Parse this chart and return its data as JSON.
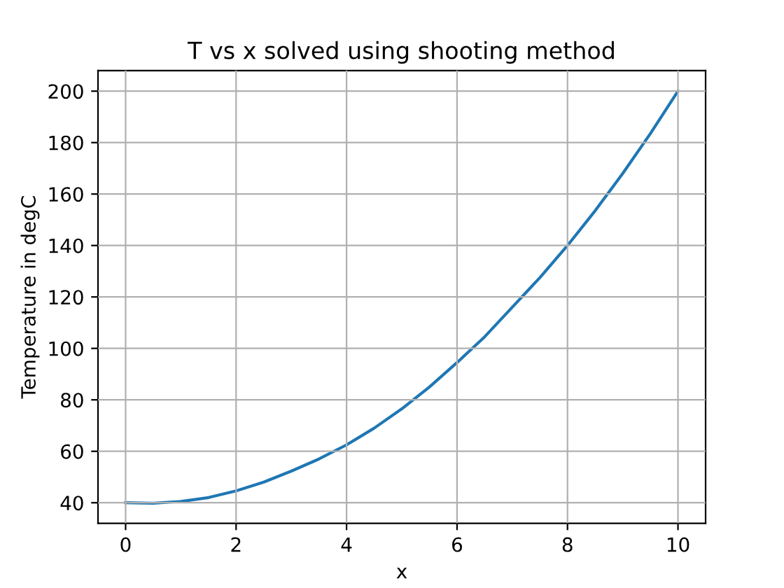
{
  "chart_data": {
    "type": "line",
    "title": "T vs x solved using shooting method",
    "xlabel": "x",
    "ylabel": "Temperature in degC",
    "x": [
      0,
      0.5,
      1,
      1.5,
      2,
      2.5,
      3,
      3.5,
      4,
      4.5,
      5,
      5.5,
      6,
      6.5,
      7,
      7.5,
      8,
      8.5,
      9,
      9.5,
      10
    ],
    "series": [
      {
        "color": "#1f77b4",
        "values": [
          40.0,
          39.8,
          40.5,
          42.0,
          44.6,
          48.0,
          52.3,
          57.0,
          62.5,
          69.0,
          76.5,
          85.0,
          94.5,
          104.5,
          116.0,
          127.5,
          140.0,
          153.5,
          168.0,
          183.5,
          200.0
        ]
      }
    ],
    "xlim": [
      -0.5,
      10.5
    ],
    "ylim": [
      32,
      208
    ],
    "xticks": [
      0,
      2,
      4,
      6,
      8,
      10
    ],
    "yticks": [
      40,
      60,
      80,
      100,
      120,
      140,
      160,
      180,
      200
    ],
    "grid": true,
    "line_style": "solid"
  }
}
